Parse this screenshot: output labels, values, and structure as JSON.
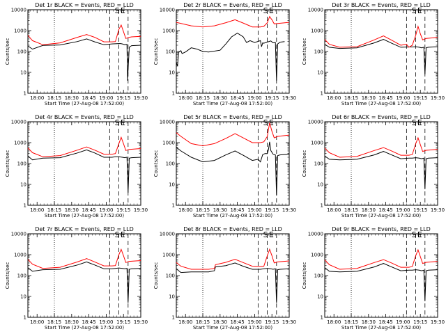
{
  "figure": {
    "background": "#ffffff",
    "black_color": "#000000",
    "red_color": "#ff0000"
  },
  "chart_data": [
    {
      "type": "line",
      "title": "Det 1r BLACK = Events, RED = LLD",
      "xlabel": "Start Time (27-Aug-08 17:52:00)",
      "ylabel": "Counts/sec",
      "x_ticks": [
        "18:00",
        "18:15",
        "18:30",
        "18:45",
        "19:00",
        "19:15",
        "19:30"
      ],
      "y_ticks": [
        "1",
        "10",
        "100",
        "1000",
        "10000"
      ],
      "yscale": "log",
      "ylim": [
        1,
        10000
      ],
      "markers": [
        "S",
        "E"
      ],
      "series": [
        {
          "color": "#000000",
          "x": [
            "17:52",
            "17:56",
            "18:05",
            "18:20",
            "18:35",
            "18:43",
            "18:50",
            "18:58",
            "19:05",
            "19:08",
            "19:11",
            "19:12.5",
            "19:14",
            "19:16",
            "19:18",
            "19:18.5",
            "19:20",
            "19:22",
            "19:30"
          ],
          "y": [
            185,
            130,
            195,
            205,
            300,
            400,
            290,
            210,
            230,
            235,
            240,
            240,
            230,
            210,
            220,
            4,
            160,
            190,
            200
          ]
        },
        {
          "color": "#ff0000",
          "x": [
            "17:52",
            "17:56",
            "18:05",
            "18:20",
            "18:35",
            "18:43",
            "18:50",
            "18:58",
            "19:05",
            "19:08",
            "19:11",
            "19:13",
            "19:15",
            "19:17",
            "19:20",
            "19:22",
            "19:30"
          ],
          "y": [
            600,
            330,
            210,
            260,
            480,
            650,
            480,
            290,
            290,
            300,
            1150,
            1850,
            900,
            420,
            480,
            500,
            530
          ]
        }
      ]
    },
    {
      "type": "line",
      "title": "Det 2r BLACK = Events, RED = LLD",
      "xlabel": "Start Time (27-Aug-08 17:52:00)",
      "ylabel": "Counts/sec",
      "x_ticks": [
        "18:00",
        "18:15",
        "18:30",
        "18:45",
        "19:00",
        "19:15",
        "19:30"
      ],
      "y_ticks": [
        "1",
        "10",
        "100",
        "1000",
        "10000"
      ],
      "yscale": "log",
      "ylim": [
        1,
        10000
      ],
      "markers": [
        "S",
        "E"
      ],
      "series": [
        {
          "color": "#000000",
          "x": [
            "17:52",
            "17:53",
            "17:54",
            "17:56",
            "17:57",
            "18:00",
            "18:05",
            "18:10",
            "18:15",
            "18:20",
            "18:30",
            "18:35",
            "18:40",
            "18:45",
            "18:50",
            "18:53",
            "18:56",
            "19:00",
            "19:05",
            "19:06",
            "19:07",
            "19:08",
            "19:14",
            "19:16",
            "19:18",
            "19:19",
            "19:20",
            "19:22",
            "19:26"
          ],
          "y": [
            30,
            20,
            90,
            110,
            80,
            95,
            150,
            130,
            100,
            95,
            115,
            230,
            500,
            760,
            510,
            270,
            330,
            270,
            330,
            170,
            260,
            250,
            320,
            260,
            270,
            4,
            230,
            280,
            300
          ]
        },
        {
          "color": "#ff0000",
          "x": [
            "17:52",
            "18:05",
            "18:15",
            "18:25",
            "18:35",
            "18:43",
            "18:50",
            "18:58",
            "19:05",
            "19:08",
            "19:11",
            "19:13",
            "19:15",
            "19:17",
            "19:20",
            "19:30"
          ],
          "y": [
            2500,
            1700,
            1500,
            1700,
            2400,
            3300,
            2300,
            1500,
            1500,
            1600,
            2400,
            4700,
            3300,
            2100,
            2200,
            2500
          ]
        }
      ]
    },
    {
      "type": "line",
      "title": "Det 3r BLACK = Events, RED = LLD",
      "xlabel": "Start Time (27-Aug-08 17:52:00)",
      "ylabel": "Counts/sec",
      "x_ticks": [
        "18:00",
        "18:15",
        "18:30",
        "18:45",
        "19:00",
        "19:15",
        "19:30"
      ],
      "y_ticks": [
        "1",
        "10",
        "100",
        "1000",
        "10000"
      ],
      "yscale": "log",
      "ylim": [
        1,
        10000
      ],
      "markers": [
        "S",
        "E"
      ],
      "series": [
        {
          "color": "#000000",
          "x": [
            "17:52",
            "17:56",
            "18:05",
            "18:20",
            "18:35",
            "18:43",
            "18:50",
            "18:58",
            "19:05",
            "19:08",
            "19:11",
            "19:14",
            "19:16",
            "19:18",
            "19:19",
            "19:20",
            "19:22",
            "19:30"
          ],
          "y": [
            220,
            160,
            140,
            150,
            260,
            380,
            250,
            160,
            165,
            165,
            170,
            160,
            150,
            160,
            8,
            150,
            160,
            170
          ]
        },
        {
          "color": "#ff0000",
          "x": [
            "17:52",
            "17:56",
            "18:05",
            "18:20",
            "18:35",
            "18:43",
            "18:50",
            "18:58",
            "19:03",
            "19:05",
            "19:08",
            "19:11",
            "19:13",
            "19:15",
            "19:17",
            "19:20",
            "19:30"
          ],
          "y": [
            380,
            220,
            160,
            170,
            360,
            560,
            350,
            200,
            220,
            160,
            200,
            600,
            1600,
            700,
            360,
            420,
            470
          ]
        }
      ]
    },
    {
      "type": "line",
      "title": "Det 4r BLACK = Events, RED = LLD",
      "xlabel": "Start Time (27-Aug-08 17:52:00)",
      "ylabel": "Counts/sec",
      "x_ticks": [
        "18:00",
        "18:15",
        "18:30",
        "18:45",
        "19:00",
        "19:15",
        "19:30"
      ],
      "y_ticks": [
        "1",
        "10",
        "100",
        "1000",
        "10000"
      ],
      "yscale": "log",
      "ylim": [
        1,
        10000
      ],
      "markers": [
        "S",
        "E"
      ],
      "series": [
        {
          "color": "#000000",
          "x": [
            "17:52",
            "17:56",
            "18:05",
            "18:20",
            "18:35",
            "18:43",
            "18:50",
            "18:58",
            "19:05",
            "19:08",
            "19:11",
            "19:14",
            "19:16",
            "19:18",
            "19:19",
            "19:20",
            "19:22",
            "19:30"
          ],
          "y": [
            230,
            150,
            180,
            190,
            320,
            450,
            320,
            200,
            200,
            210,
            210,
            200,
            190,
            200,
            4,
            180,
            190,
            200
          ]
        },
        {
          "color": "#ff0000",
          "x": [
            "17:52",
            "17:56",
            "18:05",
            "18:20",
            "18:35",
            "18:43",
            "18:50",
            "18:58",
            "19:05",
            "19:08",
            "19:11",
            "19:13",
            "19:15",
            "19:17",
            "19:20",
            "19:30"
          ],
          "y": [
            560,
            330,
            210,
            240,
            440,
            620,
            440,
            280,
            280,
            300,
            900,
            1800,
            900,
            420,
            470,
            520
          ]
        }
      ]
    },
    {
      "type": "line",
      "title": "Det 5r BLACK = Events, RED = LLD",
      "xlabel": "Start Time (27-Aug-08 17:52:00)",
      "ylabel": "Counts/sec",
      "x_ticks": [
        "18:00",
        "18:15",
        "18:30",
        "18:45",
        "19:00",
        "19:15",
        "19:30"
      ],
      "y_ticks": [
        "1",
        "10",
        "100",
        "1000",
        "10000"
      ],
      "yscale": "log",
      "ylim": [
        1,
        10000
      ],
      "markers": [
        "S",
        "E"
      ],
      "series": [
        {
          "color": "#000000",
          "x": [
            "17:52",
            "17:56",
            "18:05",
            "18:15",
            "18:25",
            "18:35",
            "18:43",
            "18:50",
            "18:58",
            "19:03",
            "19:05",
            "19:07",
            "19:09",
            "19:11",
            "19:12",
            "19:13",
            "19:14",
            "19:16",
            "19:18",
            "19:19",
            "19:20",
            "19:22",
            "19:30"
          ],
          "y": [
            600,
            400,
            200,
            120,
            140,
            260,
            400,
            250,
            140,
            160,
            120,
            270,
            300,
            300,
            450,
            1100,
            420,
            280,
            260,
            3,
            240,
            260,
            280
          ]
        },
        {
          "color": "#ff0000",
          "x": [
            "17:52",
            "17:56",
            "18:05",
            "18:15",
            "18:25",
            "18:35",
            "18:43",
            "18:50",
            "18:58",
            "19:05",
            "19:08",
            "19:11",
            "19:13",
            "19:15",
            "19:17",
            "19:20",
            "19:30"
          ],
          "y": [
            3000,
            2000,
            900,
            700,
            900,
            1600,
            2700,
            1700,
            1000,
            1000,
            1100,
            2000,
            9000,
            3500,
            1700,
            2000,
            2300
          ]
        }
      ]
    },
    {
      "type": "line",
      "title": "Det 6r BLACK = Events, RED = LLD",
      "xlabel": "Start Time (27-Aug-08 17:52:00)",
      "ylabel": "Counts/sec",
      "x_ticks": [
        "18:00",
        "18:15",
        "18:30",
        "18:45",
        "19:00",
        "19:15",
        "19:30"
      ],
      "y_ticks": [
        "1",
        "10",
        "100",
        "1000",
        "10000"
      ],
      "yscale": "log",
      "ylim": [
        1,
        10000
      ],
      "markers": [
        "S",
        "E"
      ],
      "series": [
        {
          "color": "#000000",
          "x": [
            "17:52",
            "17:56",
            "18:05",
            "18:20",
            "18:35",
            "18:43",
            "18:50",
            "18:58",
            "19:05",
            "19:08",
            "19:11",
            "19:14",
            "19:16",
            "19:18",
            "19:19",
            "19:20",
            "19:22",
            "19:30"
          ],
          "y": [
            230,
            160,
            150,
            160,
            260,
            380,
            260,
            170,
            180,
            180,
            190,
            180,
            170,
            180,
            6,
            170,
            180,
            190
          ]
        },
        {
          "color": "#ff0000",
          "x": [
            "17:52",
            "17:56",
            "18:05",
            "18:20",
            "18:35",
            "18:43",
            "18:50",
            "18:58",
            "19:05",
            "19:08",
            "19:11",
            "19:13",
            "19:15",
            "19:17",
            "19:20",
            "19:30"
          ],
          "y": [
            550,
            330,
            200,
            220,
            420,
            580,
            400,
            250,
            250,
            270,
            900,
            1700,
            800,
            380,
            430,
            480
          ]
        }
      ]
    },
    {
      "type": "line",
      "title": "Det 7r BLACK = Events, RED = LLD",
      "xlabel": "Start Time (27-Aug-08 17:52:00)",
      "ylabel": "Counts/sec",
      "x_ticks": [
        "18:00",
        "18:15",
        "18:30",
        "18:45",
        "19:00",
        "19:15",
        "19:30"
      ],
      "y_ticks": [
        "1",
        "10",
        "100",
        "1000",
        "10000"
      ],
      "yscale": "log",
      "ylim": [
        1,
        10000
      ],
      "markers": [
        "S",
        "E"
      ],
      "series": [
        {
          "color": "#000000",
          "x": [
            "17:52",
            "17:56",
            "18:05",
            "18:20",
            "18:35",
            "18:43",
            "18:50",
            "18:58",
            "19:05",
            "19:08",
            "19:11",
            "19:14",
            "19:16",
            "19:18",
            "19:19",
            "19:20",
            "19:22",
            "19:30"
          ],
          "y": [
            240,
            160,
            190,
            200,
            320,
            450,
            320,
            210,
            210,
            220,
            230,
            220,
            210,
            220,
            5,
            200,
            210,
            220
          ]
        },
        {
          "color": "#ff0000",
          "x": [
            "17:52",
            "17:56",
            "18:05",
            "18:20",
            "18:35",
            "18:43",
            "18:50",
            "18:58",
            "19:05",
            "19:08",
            "19:11",
            "19:13",
            "19:15",
            "19:17",
            "19:20",
            "19:30"
          ],
          "y": [
            600,
            350,
            220,
            250,
            450,
            650,
            450,
            290,
            290,
            300,
            1000,
            1800,
            900,
            420,
            480,
            520
          ]
        }
      ]
    },
    {
      "type": "line",
      "title": "Det 8r BLACK = Events, RED = LLD",
      "xlabel": "Start Time (27-Aug-08 17:52:00)",
      "ylabel": "Counts/sec",
      "x_ticks": [
        "18:00",
        "18:15",
        "18:30",
        "18:45",
        "19:00",
        "19:15",
        "19:30"
      ],
      "y_ticks": [
        "1",
        "10",
        "100",
        "1000",
        "10000"
      ],
      "yscale": "log",
      "ylim": [
        1,
        10000
      ],
      "markers": [
        "S",
        "E"
      ],
      "series": [
        {
          "color": "#000000",
          "x": [
            "17:52",
            "17:56",
            "18:05",
            "18:20",
            "18:25",
            "18:26",
            "18:35",
            "18:43",
            "18:50",
            "18:58",
            "19:05",
            "19:08",
            "19:11",
            "19:14",
            "19:16",
            "19:18",
            "19:19",
            "19:20",
            "19:22",
            "19:30"
          ],
          "y": [
            210,
            140,
            150,
            150,
            170,
            260,
            300,
            400,
            280,
            200,
            200,
            210,
            220,
            210,
            200,
            210,
            5,
            190,
            200,
            210
          ]
        },
        {
          "color": "#ff0000",
          "x": [
            "17:52",
            "17:56",
            "18:05",
            "18:20",
            "18:25",
            "18:26",
            "18:35",
            "18:43",
            "18:50",
            "18:58",
            "19:05",
            "19:08",
            "19:11",
            "19:13",
            "19:15",
            "19:17",
            "19:20",
            "19:30"
          ],
          "y": [
            420,
            280,
            200,
            200,
            220,
            330,
            430,
            600,
            420,
            280,
            270,
            280,
            900,
            1800,
            900,
            400,
            450,
            500
          ]
        }
      ]
    },
    {
      "type": "line",
      "title": "Det 9r BLACK = Events, RED = LLD",
      "xlabel": "Start Time (27-Aug-08 17:52:00)",
      "ylabel": "Counts/sec",
      "x_ticks": [
        "18:00",
        "18:15",
        "18:30",
        "18:45",
        "19:00",
        "19:15",
        "19:30"
      ],
      "y_ticks": [
        "1",
        "10",
        "100",
        "1000",
        "10000"
      ],
      "yscale": "log",
      "ylim": [
        1,
        10000
      ],
      "markers": [
        "S",
        "E"
      ],
      "series": [
        {
          "color": "#000000",
          "x": [
            "17:52",
            "17:56",
            "18:05",
            "18:20",
            "18:35",
            "18:43",
            "18:50",
            "18:58",
            "19:05",
            "19:08",
            "19:11",
            "19:14",
            "19:16",
            "19:18",
            "19:19",
            "19:20",
            "19:22",
            "19:30"
          ],
          "y": [
            240,
            160,
            150,
            160,
            260,
            380,
            260,
            170,
            180,
            180,
            190,
            180,
            170,
            180,
            6,
            170,
            180,
            190
          ]
        },
        {
          "color": "#ff0000",
          "x": [
            "17:52",
            "17:56",
            "18:05",
            "18:20",
            "18:35",
            "18:43",
            "18:50",
            "18:58",
            "19:05",
            "19:08",
            "19:11",
            "19:13",
            "19:15",
            "19:17",
            "19:20",
            "19:30"
          ],
          "y": [
            560,
            330,
            200,
            220,
            420,
            580,
            400,
            250,
            250,
            270,
            900,
            1700,
            800,
            380,
            430,
            480
          ]
        }
      ]
    }
  ]
}
